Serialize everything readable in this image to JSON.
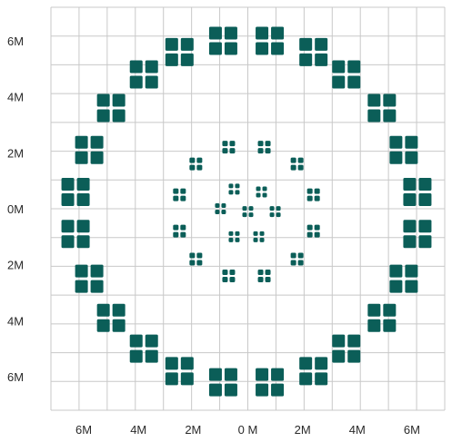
{
  "chart_data": {
    "type": "scatter",
    "title": "",
    "xlabel": "",
    "ylabel": "",
    "grid": true,
    "legend": "none",
    "marker": "four-square-cluster",
    "marker_color": "#0b5e58",
    "grid_color": "#c8c8c8",
    "xlim": [
      -7.2,
      7.2
    ],
    "ylim": [
      -7.2,
      7.2
    ],
    "x_ticks": [
      {
        "value": -6,
        "label": "6M"
      },
      {
        "value": -4,
        "label": "4M"
      },
      {
        "value": -2,
        "label": "2M"
      },
      {
        "value": 0,
        "label": "0 M"
      },
      {
        "value": 2,
        "label": "2M"
      },
      {
        "value": 4,
        "label": "4M"
      },
      {
        "value": 6,
        "label": "6M"
      }
    ],
    "y_ticks": [
      {
        "value": 6,
        "label": "6M"
      },
      {
        "value": 4,
        "label": "4M"
      },
      {
        "value": 2,
        "label": "2M"
      },
      {
        "value": 0,
        "label": "0M"
      },
      {
        "value": -2,
        "label": "2M"
      },
      {
        "value": -4,
        "label": "4M"
      },
      {
        "value": -6,
        "label": "6M"
      }
    ],
    "series": [
      {
        "size": "large",
        "points": [
          {
            "x": -0.9,
            "y": 6.0
          },
          {
            "x": 0.8,
            "y": 6.0
          },
          {
            "x": -2.5,
            "y": 5.6
          },
          {
            "x": 2.4,
            "y": 5.6
          },
          {
            "x": -3.8,
            "y": 4.8
          },
          {
            "x": 3.6,
            "y": 4.8
          },
          {
            "x": -5.0,
            "y": 3.6
          },
          {
            "x": 4.9,
            "y": 3.6
          },
          {
            "x": -5.8,
            "y": 2.1
          },
          {
            "x": 5.7,
            "y": 2.1
          },
          {
            "x": -6.3,
            "y": 0.6
          },
          {
            "x": 6.2,
            "y": 0.6
          },
          {
            "x": -6.3,
            "y": -0.9
          },
          {
            "x": 6.2,
            "y": -0.9
          },
          {
            "x": -5.8,
            "y": -2.5
          },
          {
            "x": 5.7,
            "y": -2.5
          },
          {
            "x": -5.0,
            "y": -3.9
          },
          {
            "x": 4.9,
            "y": -3.9
          },
          {
            "x": -3.8,
            "y": -5.0
          },
          {
            "x": 3.6,
            "y": -5.0
          },
          {
            "x": -2.5,
            "y": -5.8
          },
          {
            "x": 2.4,
            "y": -5.8
          },
          {
            "x": -0.9,
            "y": -6.2
          },
          {
            "x": 0.8,
            "y": -6.2
          }
        ]
      },
      {
        "size": "medium",
        "points": [
          {
            "x": -0.7,
            "y": 2.2
          },
          {
            "x": 0.6,
            "y": 2.2
          },
          {
            "x": -1.9,
            "y": 1.6
          },
          {
            "x": 1.8,
            "y": 1.6
          },
          {
            "x": -2.5,
            "y": 0.5
          },
          {
            "x": 2.4,
            "y": 0.5
          },
          {
            "x": -2.5,
            "y": -0.8
          },
          {
            "x": 2.4,
            "y": -0.8
          },
          {
            "x": -1.9,
            "y": -1.8
          },
          {
            "x": 1.8,
            "y": -1.8
          },
          {
            "x": -0.7,
            "y": -2.4
          },
          {
            "x": 0.6,
            "y": -2.4
          }
        ]
      },
      {
        "size": "small",
        "points": [
          {
            "x": -0.5,
            "y": 0.7
          },
          {
            "x": 0.5,
            "y": 0.6
          },
          {
            "x": -1.0,
            "y": 0.0
          },
          {
            "x": 0.0,
            "y": -0.1
          },
          {
            "x": 1.0,
            "y": -0.1
          },
          {
            "x": -0.5,
            "y": -1.0
          },
          {
            "x": 0.4,
            "y": -1.0
          }
        ]
      }
    ]
  }
}
